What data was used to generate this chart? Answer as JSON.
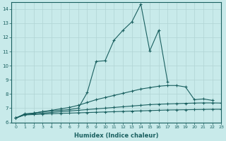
{
  "xlabel": "Humidex (Indice chaleur)",
  "background_color": "#c8eaea",
  "grid_color": "#b0d4d4",
  "line_color": "#1a6060",
  "xlim": [
    -0.5,
    23
  ],
  "ylim": [
    6.0,
    14.5
  ],
  "xticks": [
    0,
    1,
    2,
    3,
    4,
    5,
    6,
    7,
    8,
    9,
    10,
    11,
    12,
    13,
    14,
    15,
    16,
    17,
    18,
    19,
    20,
    21,
    22,
    23
  ],
  "yticks": [
    6,
    7,
    8,
    9,
    10,
    11,
    12,
    13,
    14
  ],
  "series": [
    {
      "x": [
        0,
        1,
        2,
        3,
        4,
        5,
        6,
        7,
        8,
        9,
        10,
        11,
        12,
        13,
        14,
        15,
        16,
        17
      ],
      "y": [
        6.3,
        6.6,
        6.65,
        6.75,
        6.8,
        6.85,
        6.9,
        7.0,
        8.1,
        10.3,
        10.35,
        11.8,
        12.5,
        13.1,
        14.35,
        11.05,
        12.5,
        8.85
      ]
    },
    {
      "x": [
        0,
        1,
        2,
        3,
        4,
        5,
        6,
        7,
        8,
        9,
        10,
        11,
        12,
        13,
        14,
        15,
        16,
        17,
        18,
        19,
        20,
        21,
        22
      ],
      "y": [
        6.3,
        6.55,
        6.65,
        6.75,
        6.85,
        6.95,
        7.05,
        7.2,
        7.4,
        7.6,
        7.75,
        7.9,
        8.05,
        8.2,
        8.35,
        8.45,
        8.55,
        8.6,
        8.6,
        8.5,
        7.6,
        7.65,
        7.55
      ]
    },
    {
      "x": [
        0,
        1,
        2,
        3,
        4,
        5,
        6,
        7,
        8,
        9,
        10,
        11,
        12,
        13,
        14,
        15,
        16,
        17,
        18,
        19,
        20,
        21,
        22,
        23
      ],
      "y": [
        6.3,
        6.55,
        6.6,
        6.65,
        6.7,
        6.75,
        6.8,
        6.85,
        6.9,
        6.95,
        7.0,
        7.05,
        7.1,
        7.15,
        7.2,
        7.25,
        7.28,
        7.3,
        7.32,
        7.34,
        7.36,
        7.37,
        7.37,
        7.36
      ]
    },
    {
      "x": [
        0,
        1,
        2,
        3,
        4,
        5,
        6,
        7,
        8,
        9,
        10,
        11,
        12,
        13,
        14,
        15,
        16,
        17,
        18,
        19,
        20,
        21,
        22,
        23
      ],
      "y": [
        6.3,
        6.52,
        6.55,
        6.58,
        6.61,
        6.63,
        6.65,
        6.67,
        6.69,
        6.71,
        6.73,
        6.75,
        6.77,
        6.79,
        6.81,
        6.83,
        6.85,
        6.87,
        6.88,
        6.89,
        6.9,
        6.91,
        6.92,
        6.92
      ]
    }
  ]
}
